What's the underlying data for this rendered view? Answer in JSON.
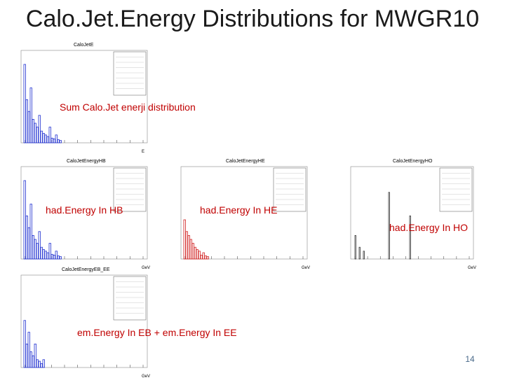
{
  "slide": {
    "title": "Calo.Jet.Energy Distributions for MWGR10",
    "page_number": "14",
    "panels": [
      {
        "title": "CaloJetE",
        "caption": "Sum Calo.Jet enerji distribution",
        "x_unit": "E",
        "color": "#1f2fd0"
      },
      {
        "title": "CaloJetEnergyHB",
        "caption": "had.Energy In HB",
        "x_unit": "GeV",
        "color": "#1f2fd0"
      },
      {
        "title": "CaloJetEnergyHE",
        "caption": "had.Energy In HE",
        "x_unit": "GeV",
        "color": "#d01f1f"
      },
      {
        "title": "CaloJetEnergyHO",
        "caption": "had.Energy In HO",
        "x_unit": "GeV",
        "color": "#333333"
      },
      {
        "title": "CaloJetEnergyEB_EE",
        "caption": "em.Energy In EB + em.Energy In EE",
        "x_unit": "GeV",
        "color": "#1f2fd0"
      }
    ]
  }
}
